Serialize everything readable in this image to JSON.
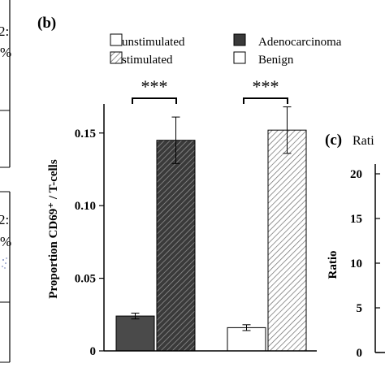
{
  "panels": {
    "a_left": {
      "top_label": "2:",
      "top_pct": "%",
      "bottom_label": "2:",
      "bottom_pct": "%"
    },
    "b": {
      "label": "(b)"
    },
    "c": {
      "label": "(c)",
      "title_fragment": "Rati"
    }
  },
  "legend": {
    "unstimulated": "unstimulated",
    "stimulated": "stimulated",
    "adenocarcinoma": "Adenocarcinoma",
    "benign": "Benign"
  },
  "significance": [
    "***",
    "***"
  ],
  "chart_data": [
    {
      "type": "bar",
      "title": "",
      "xlabel": "",
      "ylabel": "Proportion CD69⁺ / T-cells",
      "ylim": [
        0,
        0.17
      ],
      "yticks": [
        0,
        0.05,
        0.1,
        0.15
      ],
      "ytick_labels": [
        "0",
        "0.05",
        "0.10",
        "0.15"
      ],
      "groups": [
        "Adenocarcinoma",
        "Benign"
      ],
      "series": [
        {
          "name": "unstimulated",
          "values": [
            0.024,
            0.016
          ],
          "errors": [
            0.002,
            0.002
          ]
        },
        {
          "name": "stimulated",
          "values": [
            0.145,
            0.152
          ],
          "errors": [
            0.016,
            0.016
          ]
        }
      ],
      "colors": {
        "adenocarcinoma": "#4a4a4a",
        "benign": "#ffffff"
      },
      "grid": false,
      "legend_position": "top"
    },
    {
      "type": "bar",
      "ylabel": "Ratio",
      "ylim": [
        0,
        22
      ],
      "yticks": [
        0,
        5,
        10,
        15,
        20
      ],
      "ytick_labels": [
        "0",
        "5",
        "10",
        "15",
        "20"
      ]
    }
  ]
}
